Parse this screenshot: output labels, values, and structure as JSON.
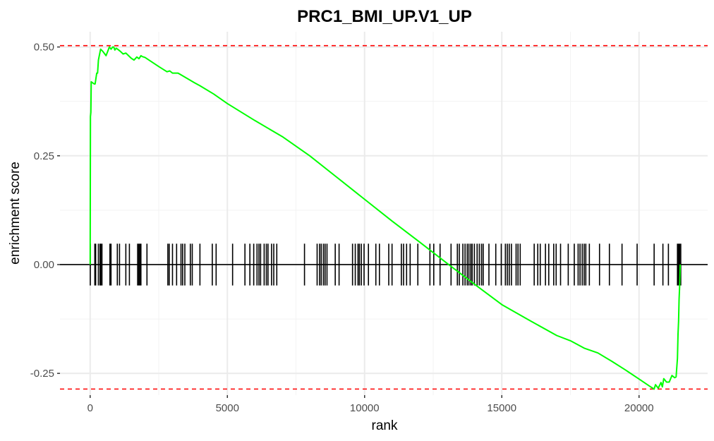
{
  "chart_data": {
    "type": "line",
    "title": "PRC1_BMI_UP.V1_UP",
    "xlabel": "rank",
    "ylabel": "enrichment score",
    "xlim": [
      -1100,
      22500
    ],
    "ylim": [
      -0.3,
      0.535
    ],
    "grid": true,
    "legend": "none",
    "x_ticks": [
      0,
      5000,
      10000,
      15000,
      20000
    ],
    "x_tick_labels": [
      "0",
      "5000",
      "10000",
      "15000",
      "20000"
    ],
    "y_ticks": [
      -0.25,
      0.0,
      0.25,
      0.5
    ],
    "y_tick_labels": [
      "-0.25",
      "0.00",
      "0.25",
      "0.50"
    ],
    "reference_lines": {
      "max_es": 0.503,
      "min_es": -0.286,
      "zero": 0.0
    },
    "series": [
      {
        "color": "#00ff00",
        "x": [
          0,
          10,
          25,
          40,
          150,
          180,
          240,
          270,
          300,
          380,
          460,
          580,
          640,
          700,
          760,
          820,
          860,
          900,
          950,
          1000,
          1100,
          1200,
          1300,
          1400,
          1500,
          1600,
          1700,
          1780,
          1850,
          1900,
          2000,
          2500,
          2800,
          2900,
          3000,
          3200,
          3500,
          3800,
          4000,
          4500,
          5000,
          6000,
          7000,
          8000,
          9000,
          10000,
          11000,
          12000,
          13000,
          14000,
          15000,
          16000,
          17000,
          17500,
          18000,
          18500,
          19000,
          19500,
          20000,
          20400,
          20550,
          20600,
          20700,
          20800,
          20850,
          20900,
          21000,
          21100,
          21200,
          21300,
          21350,
          21400,
          21420,
          21440,
          21460,
          21480,
          21500
        ],
        "y": [
          0.0,
          0.34,
          0.35,
          0.42,
          0.415,
          0.415,
          0.44,
          0.44,
          0.47,
          0.495,
          0.49,
          0.48,
          0.49,
          0.5,
          0.495,
          0.5,
          0.5,
          0.493,
          0.497,
          0.495,
          0.49,
          0.484,
          0.486,
          0.48,
          0.474,
          0.47,
          0.477,
          0.473,
          0.48,
          0.478,
          0.476,
          0.455,
          0.443,
          0.445,
          0.44,
          0.44,
          0.429,
          0.418,
          0.411,
          0.392,
          0.37,
          0.331,
          0.294,
          0.25,
          0.2,
          0.15,
          0.1,
          0.052,
          0.003,
          -0.045,
          -0.092,
          -0.128,
          -0.163,
          -0.175,
          -0.192,
          -0.203,
          -0.222,
          -0.242,
          -0.263,
          -0.28,
          -0.286,
          -0.276,
          -0.284,
          -0.271,
          -0.281,
          -0.262,
          -0.27,
          -0.27,
          -0.255,
          -0.26,
          -0.258,
          -0.215,
          -0.16,
          -0.13,
          -0.08,
          -0.05,
          0.0
        ]
      }
    ],
    "hit_ranks": [
      5,
      170,
      200,
      300,
      360,
      390,
      430,
      720,
      760,
      990,
      1070,
      1300,
      1430,
      1730,
      1770,
      1810,
      1850,
      2070,
      2830,
      2880,
      3000,
      3150,
      3310,
      3370,
      3450,
      3650,
      3720,
      4000,
      4450,
      4590,
      5190,
      5640,
      5820,
      5960,
      6080,
      6150,
      6210,
      6340,
      6420,
      6480,
      6610,
      6690,
      6800,
      7810,
      8270,
      8360,
      8420,
      8500,
      8560,
      8630,
      8930,
      9070,
      9560,
      9660,
      9760,
      9810,
      9880,
      9980,
      10140,
      10410,
      10540,
      10880,
      11000,
      11340,
      11420,
      11530,
      11660,
      11940,
      12380,
      12520,
      12750,
      13150,
      13380,
      13450,
      13580,
      13660,
      13740,
      13800,
      13870,
      13920,
      14000,
      14100,
      14180,
      14260,
      14320,
      14530,
      14780,
      14980,
      15130,
      15200,
      15270,
      15350,
      15520,
      15590,
      15670,
      16180,
      16310,
      16400,
      16590,
      16710,
      16890,
      16980,
      17140,
      17420,
      17640,
      17780,
      17850,
      17930,
      18000,
      18060,
      18190,
      18560,
      18920,
      19380,
      19930,
      20550,
      20870,
      21070,
      21400,
      21440,
      21480,
      21520
    ]
  }
}
